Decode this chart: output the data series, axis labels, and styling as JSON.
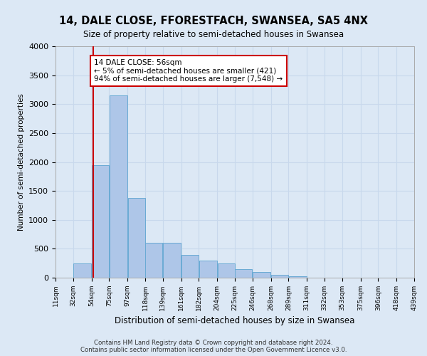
{
  "title": "14, DALE CLOSE, FFORESTFACH, SWANSEA, SA5 4NX",
  "subtitle": "Size of property relative to semi-detached houses in Swansea",
  "xlabel": "Distribution of semi-detached houses by size in Swansea",
  "ylabel": "Number of semi-detached properties",
  "footer_line1": "Contains HM Land Registry data © Crown copyright and database right 2024.",
  "footer_line2": "Contains public sector information licensed under the Open Government Licence v3.0.",
  "annotation_title": "14 DALE CLOSE: 56sqm",
  "annotation_line1": "← 5% of semi-detached houses are smaller (421)",
  "annotation_line2": "94% of semi-detached houses are larger (7,548) →",
  "property_size": 56,
  "bins": [
    11,
    32,
    54,
    75,
    97,
    118,
    139,
    161,
    182,
    204,
    225,
    246,
    268,
    289,
    311,
    332,
    353,
    375,
    396,
    418,
    439
  ],
  "values": [
    0,
    250,
    1950,
    3150,
    1380,
    600,
    600,
    390,
    300,
    250,
    150,
    100,
    50,
    30,
    5,
    0,
    0,
    0,
    0,
    0
  ],
  "bar_color": "#aec6e8",
  "bar_edge_color": "#6aaad4",
  "grid_color": "#c8d8ec",
  "background_color": "#dce8f5",
  "annotation_box_color": "#ffffff",
  "annotation_box_edge": "#cc0000",
  "vline_color": "#cc0000",
  "ylim": [
    0,
    4000
  ],
  "tick_labels": [
    "11sqm",
    "32sqm",
    "54sqm",
    "75sqm",
    "97sqm",
    "118sqm",
    "139sqm",
    "161sqm",
    "182sqm",
    "204sqm",
    "225sqm",
    "246sqm",
    "268sqm",
    "289sqm",
    "311sqm",
    "332sqm",
    "353sqm",
    "375sqm",
    "396sqm",
    "418sqm",
    "439sqm"
  ],
  "figwidth": 6.0,
  "figheight": 5.0,
  "dpi": 100
}
